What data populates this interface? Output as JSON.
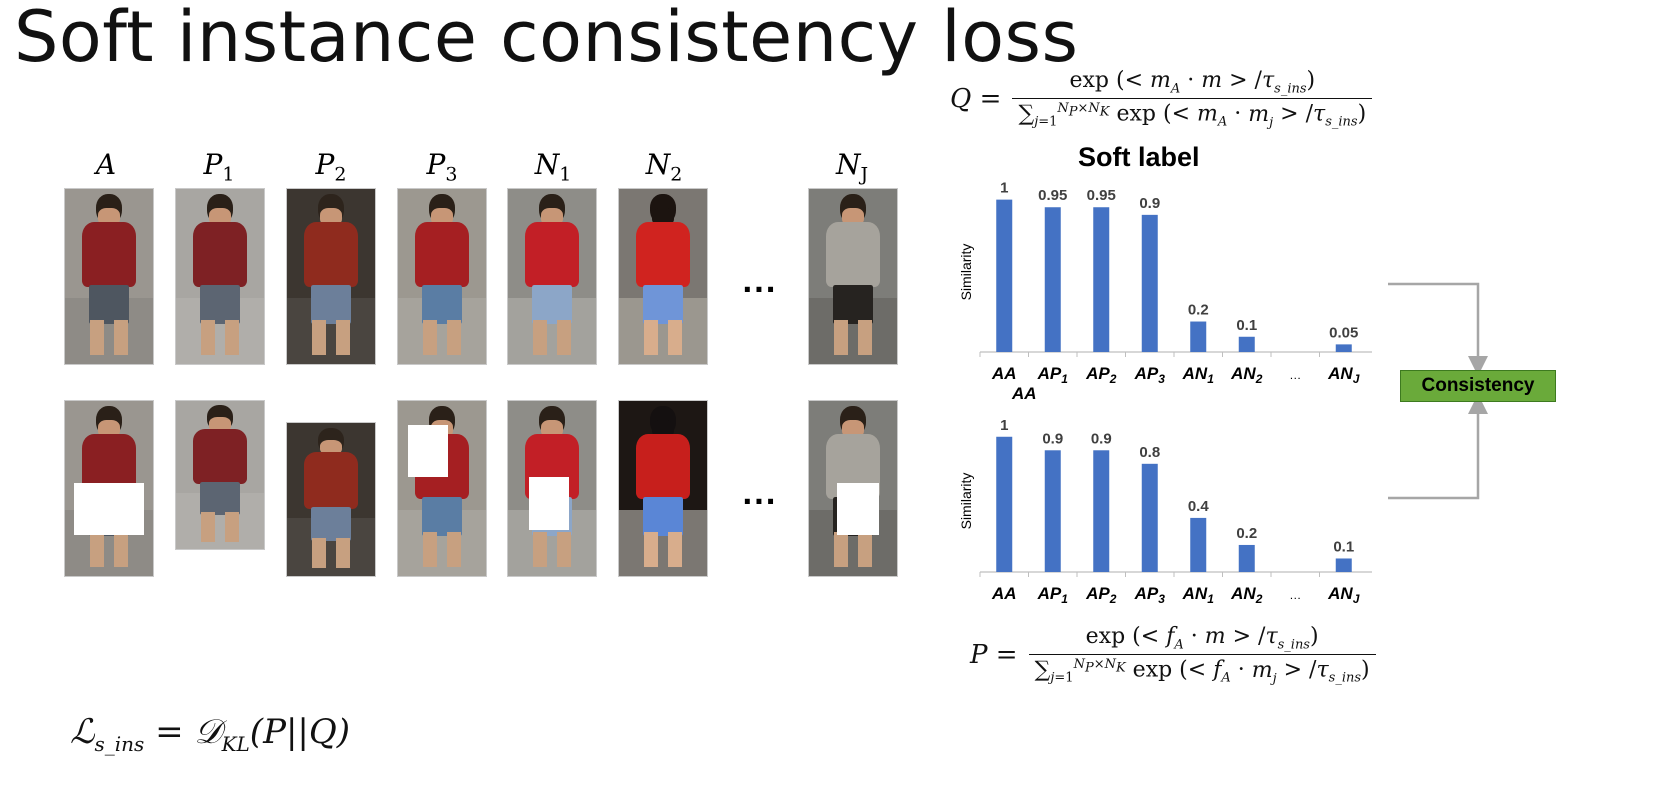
{
  "title": "Soft instance consistency loss",
  "columns": [
    {
      "id": "A",
      "label": "A",
      "sub": ""
    },
    {
      "id": "P1",
      "label": "P",
      "sub": "1"
    },
    {
      "id": "P2",
      "label": "P",
      "sub": "2"
    },
    {
      "id": "P3",
      "label": "P",
      "sub": "3"
    },
    {
      "id": "N1",
      "label": "N",
      "sub": "1"
    },
    {
      "id": "N2",
      "label": "N",
      "sub": "2"
    },
    {
      "id": "NJ",
      "label": "N",
      "sub": "J"
    }
  ],
  "ellipsis": "...",
  "formula_q": {
    "lhs": "Q =",
    "numerator": "exp (< m_A · m > / τ_s_ins)",
    "denominator": "∑_{j=1}^{N_P × N_K} exp (< m_A · m_j > / τ_s_ins)"
  },
  "formula_p": {
    "lhs": "P =",
    "numerator": "exp (< f_A · m > / τ_s_ins)",
    "denominator": "∑_{j=1}^{N_P × N_K} exp (< f_A · m_j > / τ_s_ins)"
  },
  "loss": "ℒ_s_ins = 𝒟_KL(P||Q)",
  "consistency_label": "Consistency",
  "chart_data": [
    {
      "type": "bar",
      "title": "Soft label",
      "ylabel": "Similarity",
      "categories": [
        "AA",
        "AP1",
        "AP2",
        "AP3",
        "AN1",
        "AN2",
        "…",
        "ANJ"
      ],
      "values": [
        1,
        0.95,
        0.95,
        0.9,
        0.2,
        0.1,
        null,
        0.05
      ],
      "ylim": [
        0,
        1.05
      ],
      "grid": false,
      "color": "#4472c4"
    },
    {
      "type": "bar",
      "title": "",
      "ylabel": "Similarity",
      "categories": [
        "AA",
        "AP1",
        "AP2",
        "AP3",
        "AN1",
        "AN2",
        "…",
        "ANJ"
      ],
      "values": [
        1,
        0.9,
        0.9,
        0.8,
        0.4,
        0.2,
        null,
        0.1
      ],
      "ylim": [
        0,
        1.05
      ],
      "grid": false,
      "color": "#4472c4"
    }
  ],
  "stray_label": "AA",
  "colors": {
    "bar": "#4472c4",
    "consistency_fill": "#6aaa3a",
    "arrow": "#a6a6a6"
  }
}
